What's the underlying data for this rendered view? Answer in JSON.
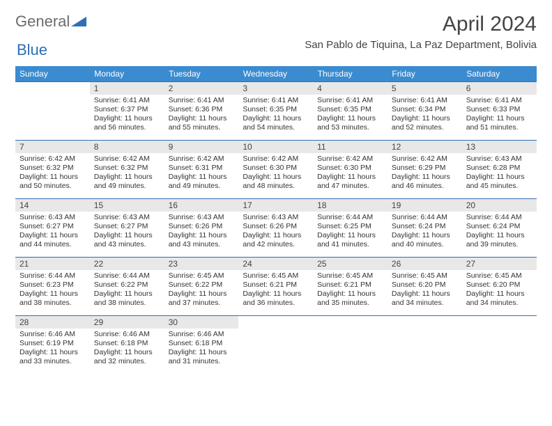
{
  "brand": {
    "general": "General",
    "blue": "Blue"
  },
  "title": "April 2024",
  "location": "San Pablo de Tiquina, La Paz Department, Bolivia",
  "colors": {
    "header_bg": "#3b8bd0",
    "header_text": "#ffffff",
    "rule": "#2e6fb4",
    "daynum_bg": "#e8e8e8",
    "text": "#333333",
    "logo_gray": "#6b6b6b",
    "logo_blue": "#2e6fb4"
  },
  "weekdays": [
    "Sunday",
    "Monday",
    "Tuesday",
    "Wednesday",
    "Thursday",
    "Friday",
    "Saturday"
  ],
  "weeks": [
    [
      null,
      {
        "n": "1",
        "sr": "6:41 AM",
        "ss": "6:37 PM",
        "dl": "11 hours and 56 minutes."
      },
      {
        "n": "2",
        "sr": "6:41 AM",
        "ss": "6:36 PM",
        "dl": "11 hours and 55 minutes."
      },
      {
        "n": "3",
        "sr": "6:41 AM",
        "ss": "6:35 PM",
        "dl": "11 hours and 54 minutes."
      },
      {
        "n": "4",
        "sr": "6:41 AM",
        "ss": "6:35 PM",
        "dl": "11 hours and 53 minutes."
      },
      {
        "n": "5",
        "sr": "6:41 AM",
        "ss": "6:34 PM",
        "dl": "11 hours and 52 minutes."
      },
      {
        "n": "6",
        "sr": "6:41 AM",
        "ss": "6:33 PM",
        "dl": "11 hours and 51 minutes."
      }
    ],
    [
      {
        "n": "7",
        "sr": "6:42 AM",
        "ss": "6:32 PM",
        "dl": "11 hours and 50 minutes."
      },
      {
        "n": "8",
        "sr": "6:42 AM",
        "ss": "6:32 PM",
        "dl": "11 hours and 49 minutes."
      },
      {
        "n": "9",
        "sr": "6:42 AM",
        "ss": "6:31 PM",
        "dl": "11 hours and 49 minutes."
      },
      {
        "n": "10",
        "sr": "6:42 AM",
        "ss": "6:30 PM",
        "dl": "11 hours and 48 minutes."
      },
      {
        "n": "11",
        "sr": "6:42 AM",
        "ss": "6:30 PM",
        "dl": "11 hours and 47 minutes."
      },
      {
        "n": "12",
        "sr": "6:42 AM",
        "ss": "6:29 PM",
        "dl": "11 hours and 46 minutes."
      },
      {
        "n": "13",
        "sr": "6:43 AM",
        "ss": "6:28 PM",
        "dl": "11 hours and 45 minutes."
      }
    ],
    [
      {
        "n": "14",
        "sr": "6:43 AM",
        "ss": "6:27 PM",
        "dl": "11 hours and 44 minutes."
      },
      {
        "n": "15",
        "sr": "6:43 AM",
        "ss": "6:27 PM",
        "dl": "11 hours and 43 minutes."
      },
      {
        "n": "16",
        "sr": "6:43 AM",
        "ss": "6:26 PM",
        "dl": "11 hours and 43 minutes."
      },
      {
        "n": "17",
        "sr": "6:43 AM",
        "ss": "6:26 PM",
        "dl": "11 hours and 42 minutes."
      },
      {
        "n": "18",
        "sr": "6:44 AM",
        "ss": "6:25 PM",
        "dl": "11 hours and 41 minutes."
      },
      {
        "n": "19",
        "sr": "6:44 AM",
        "ss": "6:24 PM",
        "dl": "11 hours and 40 minutes."
      },
      {
        "n": "20",
        "sr": "6:44 AM",
        "ss": "6:24 PM",
        "dl": "11 hours and 39 minutes."
      }
    ],
    [
      {
        "n": "21",
        "sr": "6:44 AM",
        "ss": "6:23 PM",
        "dl": "11 hours and 38 minutes."
      },
      {
        "n": "22",
        "sr": "6:44 AM",
        "ss": "6:22 PM",
        "dl": "11 hours and 38 minutes."
      },
      {
        "n": "23",
        "sr": "6:45 AM",
        "ss": "6:22 PM",
        "dl": "11 hours and 37 minutes."
      },
      {
        "n": "24",
        "sr": "6:45 AM",
        "ss": "6:21 PM",
        "dl": "11 hours and 36 minutes."
      },
      {
        "n": "25",
        "sr": "6:45 AM",
        "ss": "6:21 PM",
        "dl": "11 hours and 35 minutes."
      },
      {
        "n": "26",
        "sr": "6:45 AM",
        "ss": "6:20 PM",
        "dl": "11 hours and 34 minutes."
      },
      {
        "n": "27",
        "sr": "6:45 AM",
        "ss": "6:20 PM",
        "dl": "11 hours and 34 minutes."
      }
    ],
    [
      {
        "n": "28",
        "sr": "6:46 AM",
        "ss": "6:19 PM",
        "dl": "11 hours and 33 minutes."
      },
      {
        "n": "29",
        "sr": "6:46 AM",
        "ss": "6:18 PM",
        "dl": "11 hours and 32 minutes."
      },
      {
        "n": "30",
        "sr": "6:46 AM",
        "ss": "6:18 PM",
        "dl": "11 hours and 31 minutes."
      },
      null,
      null,
      null,
      null
    ]
  ],
  "labels": {
    "sunrise": "Sunrise:",
    "sunset": "Sunset:",
    "daylight": "Daylight:"
  }
}
